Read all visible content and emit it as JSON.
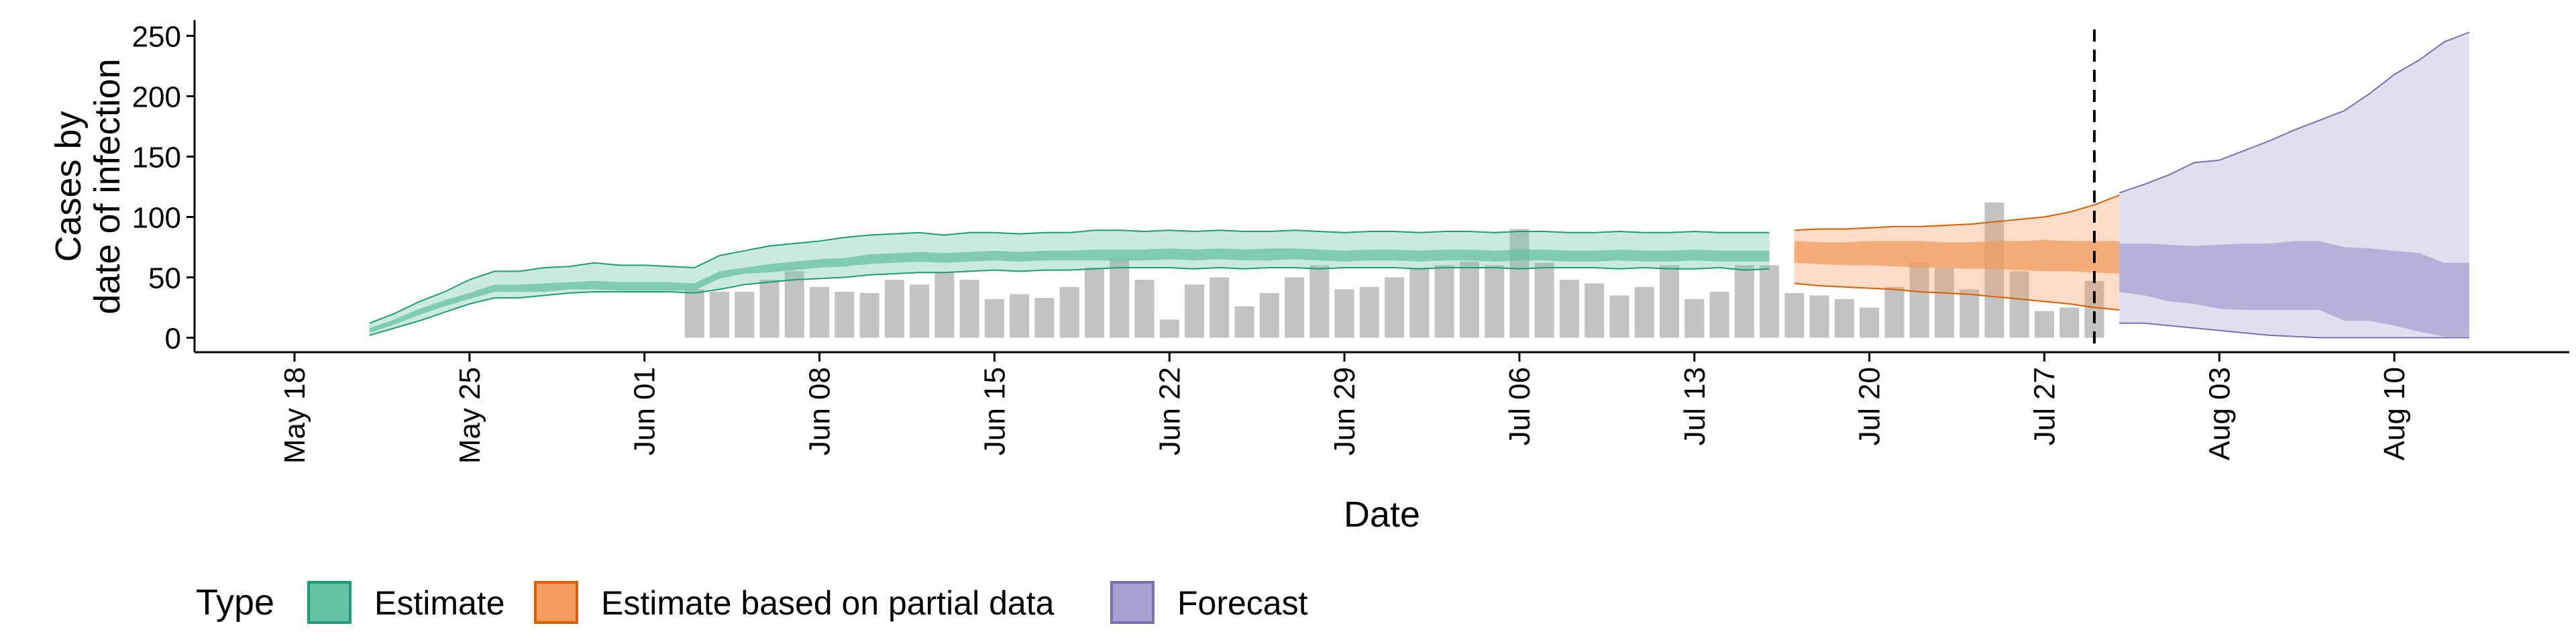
{
  "chart_data": {
    "type": "area",
    "xlabel": "Date",
    "ylabel_lines": [
      "Cases by",
      "date of infection"
    ],
    "ylim": [
      -12,
      263
    ],
    "yticks": [
      0,
      50,
      100,
      150,
      200,
      250
    ],
    "x_date_range": [
      "2020-05-14",
      "2020-08-17"
    ],
    "xticks": [
      {
        "date": "2020-05-18",
        "label": "May 18"
      },
      {
        "date": "2020-05-25",
        "label": "May 25"
      },
      {
        "date": "2020-06-01",
        "label": "Jun 01"
      },
      {
        "date": "2020-06-08",
        "label": "Jun 08"
      },
      {
        "date": "2020-06-15",
        "label": "Jun 15"
      },
      {
        "date": "2020-06-22",
        "label": "Jun 22"
      },
      {
        "date": "2020-06-29",
        "label": "Jun 29"
      },
      {
        "date": "2020-07-06",
        "label": "Jul 06"
      },
      {
        "date": "2020-07-13",
        "label": "Jul 13"
      },
      {
        "date": "2020-07-20",
        "label": "Jul 20"
      },
      {
        "date": "2020-07-27",
        "label": "Jul 27"
      },
      {
        "date": "2020-08-03",
        "label": "Aug 03"
      },
      {
        "date": "2020-08-10",
        "label": "Aug 10"
      }
    ],
    "vline_date": "2020-07-29",
    "bars": {
      "start_date": "2020-06-03",
      "color": "#bdbdbd",
      "values": [
        40,
        38,
        38,
        48,
        55,
        42,
        38,
        37,
        48,
        44,
        54,
        48,
        32,
        36,
        33,
        42,
        58,
        65,
        48,
        15,
        44,
        50,
        26,
        37,
        50,
        60,
        40,
        42,
        50,
        57,
        60,
        63,
        60,
        90,
        62,
        48,
        45,
        35,
        42,
        60,
        32,
        38,
        60,
        60,
        37,
        35,
        32,
        25,
        42,
        62,
        58,
        40,
        112,
        55,
        22,
        25,
        47
      ]
    },
    "series": [
      {
        "name": "Estimate",
        "color": "#1b9e77",
        "fill": "#66c2a4",
        "start_date": "2020-05-21",
        "outer_lower": [
          2,
          8,
          14,
          21,
          28,
          33,
          33,
          35,
          37,
          38,
          38,
          38,
          38,
          37,
          40,
          44,
          46,
          48,
          49,
          50,
          52,
          53,
          54,
          54,
          55,
          56,
          55,
          56,
          56,
          57,
          58,
          58,
          58,
          57,
          58,
          57,
          58,
          58,
          57,
          58,
          58,
          58,
          57,
          58,
          58,
          58,
          57,
          58,
          58,
          58,
          57,
          58,
          57,
          57,
          58,
          56,
          57
        ],
        "inner_lower": [
          4,
          11,
          19,
          26,
          32,
          38,
          38,
          38,
          40,
          40,
          39,
          39,
          39,
          39,
          49,
          53,
          54,
          56,
          58,
          59,
          61,
          62,
          63,
          62,
          63,
          64,
          63,
          64,
          64,
          64,
          64,
          64,
          65,
          64,
          65,
          64,
          64,
          65,
          64,
          63,
          64,
          64,
          63,
          64,
          64,
          63,
          64,
          64,
          63,
          63,
          64,
          63,
          63,
          64,
          63,
          63,
          63
        ],
        "inner_upper": [
          8,
          15,
          24,
          31,
          37,
          44,
          44,
          45,
          46,
          47,
          46,
          46,
          46,
          45,
          55,
          58,
          61,
          63,
          65,
          66,
          69,
          70,
          71,
          70,
          71,
          72,
          71,
          72,
          72,
          73,
          73,
          73,
          74,
          73,
          74,
          73,
          74,
          74,
          73,
          72,
          73,
          73,
          72,
          73,
          73,
          72,
          73,
          73,
          72,
          72,
          73,
          72,
          72,
          73,
          72,
          72,
          72
        ],
        "outer_upper": [
          12,
          20,
          30,
          38,
          48,
          55,
          55,
          58,
          59,
          62,
          60,
          60,
          59,
          58,
          68,
          72,
          76,
          78,
          80,
          83,
          85,
          86,
          87,
          85,
          87,
          87,
          86,
          87,
          87,
          89,
          89,
          88,
          89,
          88,
          89,
          88,
          88,
          89,
          88,
          87,
          88,
          88,
          87,
          88,
          88,
          87,
          88,
          88,
          87,
          87,
          88,
          87,
          87,
          88,
          87,
          87,
          87
        ]
      },
      {
        "name": "Estimate based on partial data",
        "color": "#d95f02",
        "fill": "#f39c5e",
        "start_date": "2020-07-17",
        "outer_lower": [
          45,
          43,
          42,
          41,
          40,
          38,
          37,
          36,
          34,
          32,
          30,
          28,
          25,
          23
        ],
        "inner_lower": [
          62,
          61,
          60,
          60,
          59,
          58,
          58,
          57,
          57,
          56,
          55,
          55,
          54,
          53
        ],
        "inner_upper": [
          80,
          79,
          79,
          80,
          80,
          80,
          79,
          79,
          80,
          80,
          81,
          80,
          80,
          80
        ],
        "outer_upper": [
          89,
          90,
          90,
          91,
          92,
          92,
          93,
          94,
          96,
          98,
          100,
          104,
          110,
          118
        ]
      },
      {
        "name": "Forecast",
        "color": "#7570b3",
        "fill": "#a7a2d1",
        "start_date": "2020-07-30",
        "outer_lower": [
          12,
          12,
          10,
          8,
          6,
          4,
          2,
          1,
          0,
          0,
          0,
          0,
          0,
          0,
          0
        ],
        "inner_lower": [
          38,
          35,
          30,
          28,
          24,
          23,
          23,
          23,
          23,
          14,
          14,
          10,
          5,
          1,
          1
        ],
        "inner_upper": [
          78,
          78,
          77,
          76,
          77,
          78,
          78,
          80,
          80,
          75,
          74,
          72,
          70,
          62,
          62
        ],
        "outer_upper": [
          120,
          127,
          135,
          145,
          147,
          155,
          163,
          172,
          180,
          188,
          202,
          218,
          230,
          245,
          253
        ]
      }
    ],
    "legend": {
      "title": "Type",
      "position": "bottom",
      "items": [
        {
          "label": "Estimate",
          "fill": "#66c2a4",
          "stroke": "#1b9e77"
        },
        {
          "label": "Estimate based on partial data",
          "fill": "#f39c5e",
          "stroke": "#d95f02"
        },
        {
          "label": "Forecast",
          "fill": "#a7a2d1",
          "stroke": "#7570b3"
        }
      ]
    },
    "grid": false
  }
}
